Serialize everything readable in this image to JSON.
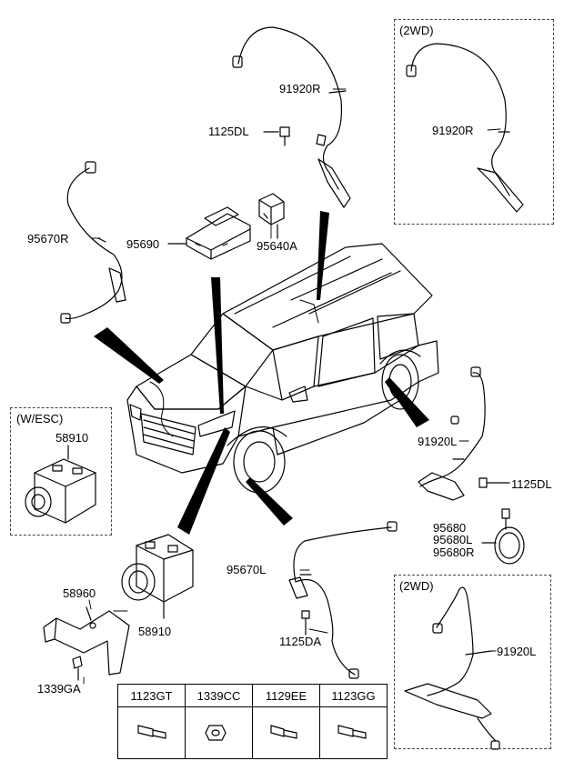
{
  "labels": {
    "p91920R_top": "91920R",
    "p1125DL_top": "1125DL",
    "p91920R_2wd": "91920R",
    "p95670R": "95670R",
    "p95690": "95690",
    "p95640A": "95640A",
    "p58910_esc": "58910",
    "p91920L": "91920L",
    "p1125DL_right": "1125DL",
    "p95680": "95680",
    "p95680L": "95680L",
    "p95680R": "95680R",
    "p95670L": "95670L",
    "p1125DA": "1125DA",
    "p58960": "58960",
    "p58910": "58910",
    "p1339GA": "1339GA",
    "p91920L_2wd": "91920L"
  },
  "boxes": {
    "top_2wd": "(2WD)",
    "esc": "(W/ESC)",
    "bottom_2wd": "(2WD)"
  },
  "fasteners": [
    "1123GT",
    "1339CC",
    "1129EE",
    "1123GG"
  ]
}
